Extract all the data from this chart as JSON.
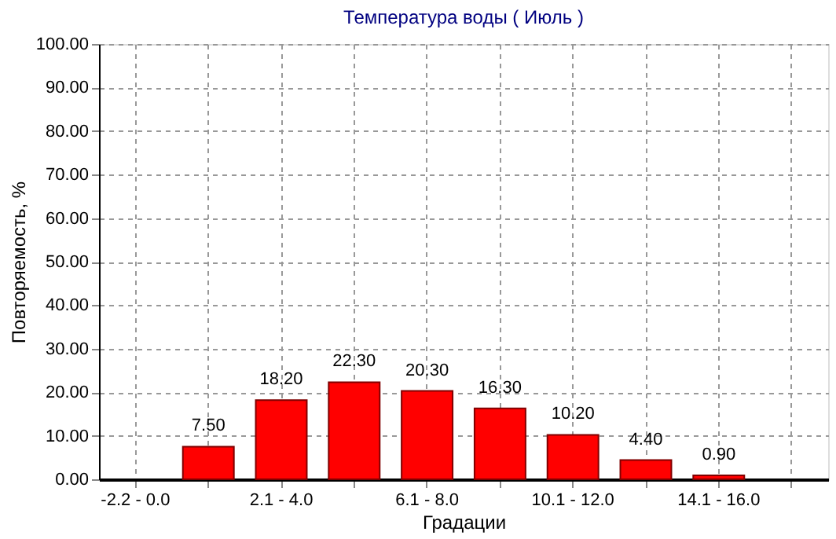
{
  "chart_data": {
    "type": "bar",
    "title": "Температура воды     ( Июль )",
    "xlabel": "Градации",
    "ylabel": "Повторяемость, %",
    "categories": [
      "-2.2 - 0.0",
      null,
      "2.1 - 4.0",
      null,
      "6.1 - 8.0",
      null,
      "10.1 - 12.0",
      null,
      "14.1 - 16.0",
      null
    ],
    "values": [
      null,
      7.5,
      18.2,
      22.3,
      20.3,
      16.3,
      10.2,
      4.4,
      0.9,
      null
    ],
    "value_labels": [
      null,
      "7.50",
      "18.20",
      "22.30",
      "20.30",
      "16.30",
      "10.20",
      "4.40",
      "0.90",
      null
    ],
    "color": "#ff0000",
    "ylim": [
      0,
      100
    ],
    "yticks": [
      {
        "value": 0,
        "label": "0.00"
      },
      {
        "value": 10,
        "label": "10.00"
      },
      {
        "value": 20,
        "label": "20.00"
      },
      {
        "value": 30,
        "label": "30.00"
      },
      {
        "value": 40,
        "label": "40.00"
      },
      {
        "value": 50,
        "label": "50.00"
      },
      {
        "value": 60,
        "label": "60.00"
      },
      {
        "value": 70,
        "label": "70.00"
      },
      {
        "value": 80,
        "label": "80.00"
      },
      {
        "value": 90,
        "label": "90.00"
      },
      {
        "value": 100,
        "label": "100.00"
      }
    ],
    "grid": true
  }
}
